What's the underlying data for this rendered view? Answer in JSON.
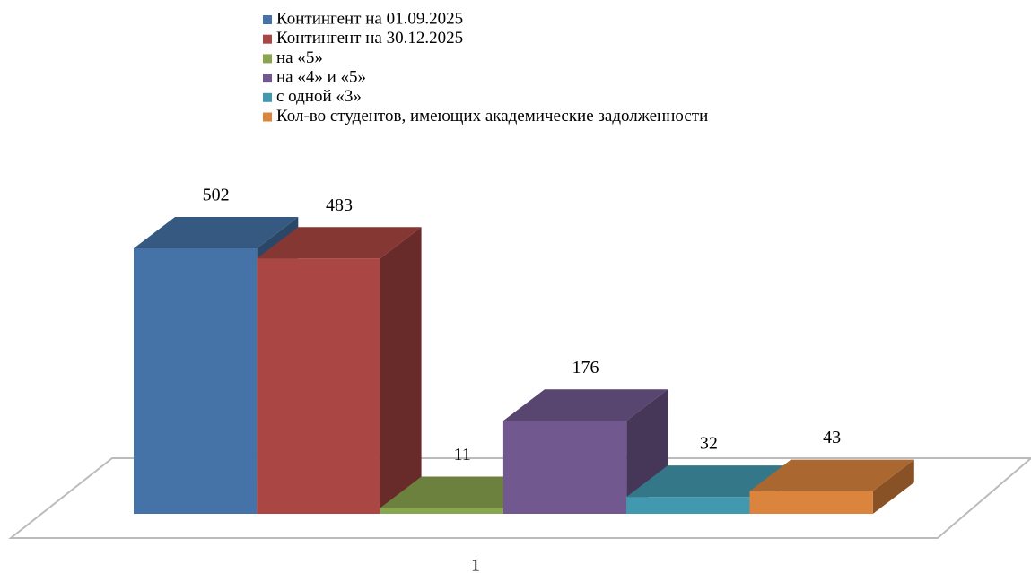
{
  "chart_data": {
    "type": "bar3d",
    "categories": [
      "1"
    ],
    "series": [
      {
        "name": "Контингент на  01.09.2025",
        "color": "#4572a7",
        "values": [
          502
        ]
      },
      {
        "name": "Контингент на  30.12.2025",
        "color": "#aa4643",
        "values": [
          483
        ]
      },
      {
        "name": "на «5»",
        "color": "#89a54e",
        "values": [
          11
        ]
      },
      {
        "name": "на «4» и «5»",
        "color": "#71588f",
        "values": [
          176
        ]
      },
      {
        "name": "с одной «3»",
        "color": "#4198af",
        "values": [
          32
        ]
      },
      {
        "name": "Кол-во студентов, имеющих академические задолженности",
        "color": "#db843d",
        "values": [
          43
        ]
      }
    ]
  }
}
